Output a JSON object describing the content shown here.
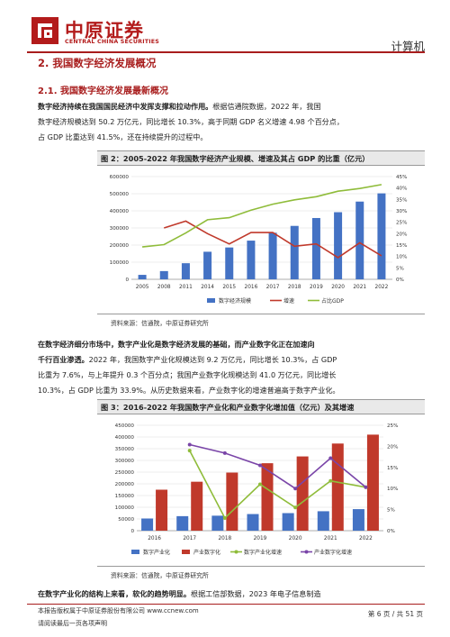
{
  "header": {
    "logo_cn": "中原证券",
    "logo_en": "CENTRAL CHINA SECURITIES",
    "category": "计算机"
  },
  "section_title": "2. 我国数字经济发展概况",
  "subsection_title": "2.1. 我国数字经济发展最新概况",
  "para1": {
    "line1_bold": "数字经济持续在我国国民经济中发挥支撑和拉动作用。",
    "line1_rest": "根据信通院数据，2022 年，我国",
    "line2": "数字经济规模达到 50.2 万亿元，同比增长 10.3%，高于同期 GDP 名义增速 4.98 个百分点，",
    "line3": "占 GDP 比重达到 41.5%，还在持续提升的过程中。"
  },
  "figure2": {
    "title": "图 2：2005-2022 年我国数字经济产业规模、增速及其占 GDP 的比重（亿元）",
    "source": "资料来源：信通院，中原证券研究所"
  },
  "para2": {
    "line1_bold": "在数字经济细分市场中，数字产业化是数字经济发展的基础，而产业数字化正在加速向",
    "line2_bold": "千行百业渗透。",
    "line2_rest": "2022 年，我国数字产业化规模达到 9.2 万亿元，同比增长 10.3%，占 GDP",
    "line3": "比重为 7.6%，与上年提升 0.3 个百分点；我国产业数字化规模达到 41.0 万亿元，同比增长",
    "line4": "10.3%，占 GDP 比重为 33.9%。从历史数据来看，产业数字化的增速普遍高于数字产业化。"
  },
  "figure3": {
    "title": "图 3：2016-2022 年我国数字产业化和产业数字化增加值（亿元）及其增速",
    "source": "资料来源：信通院，中原证券研究所"
  },
  "para3": {
    "line1_bold": "在数字产业化的结构上来看，软化的趋势明显。",
    "line1_rest": "根据工信部数据，2023 年电子信息制造"
  },
  "footer": {
    "line1": "本报告版权属于中原证券股份有限公司      www.ccnew.com",
    "line2": "请阅读最后一页各项声明",
    "page": "第 6 页 / 共 51 页"
  },
  "colors": {
    "brand": "#a81d1d",
    "bar_blue": "#4472c4",
    "bar_red": "#c0392b",
    "line_red": "#c0392b",
    "line_green": "#8fbc3a",
    "line_purple": "#7a45a8"
  },
  "chart_data": [
    {
      "type": "bar",
      "categories": [
        "2005",
        "2008",
        "2011",
        "2014",
        "2015",
        "2016",
        "2017",
        "2018",
        "2019",
        "2020",
        "2021",
        "2022"
      ],
      "series": [
        {
          "name": "数字经济规模",
          "type": "bar",
          "axis": "left",
          "values": [
            26000,
            48000,
            94000,
            161000,
            186000,
            226000,
            272000,
            312000,
            358000,
            392000,
            454000,
            502000
          ]
        },
        {
          "name": "增速",
          "type": "line",
          "axis": "right",
          "values": [
            null,
            22.5,
            25.5,
            20.0,
            15.5,
            20.5,
            20.5,
            14.5,
            15.5,
            9.5,
            16.0,
            10.3
          ]
        },
        {
          "name": "占比GDP",
          "type": "line",
          "axis": "right",
          "values": [
            14.2,
            15.2,
            20.3,
            26.1,
            27.0,
            30.3,
            32.9,
            34.8,
            36.2,
            38.6,
            39.8,
            41.5
          ]
        }
      ],
      "left_axis": {
        "ylim": [
          0,
          600000
        ],
        "ticks": [
          "0",
          "100000",
          "200000",
          "300000",
          "400000",
          "500000",
          "600000"
        ]
      },
      "right_axis": {
        "ylim": [
          0,
          45
        ],
        "ticks": [
          "0%",
          "5%",
          "10%",
          "15%",
          "20%",
          "25%",
          "30%",
          "35%",
          "40%",
          "45%"
        ]
      },
      "legend": [
        "数字经济规模",
        "增速",
        "占比GDP"
      ],
      "legend_position": "bottom",
      "grid": true
    },
    {
      "type": "bar",
      "categories": [
        "2016",
        "2017",
        "2018",
        "2019",
        "2020",
        "2021",
        "2022"
      ],
      "series": [
        {
          "name": "数字产业化",
          "type": "bar",
          "axis": "left",
          "values": [
            52000,
            62000,
            64000,
            71000,
            75000,
            83000,
            92000
          ]
        },
        {
          "name": "产业数字化",
          "type": "bar",
          "axis": "left",
          "values": [
            175000,
            209000,
            248000,
            288000,
            317000,
            372000,
            410000
          ]
        },
        {
          "name": "数字产业化增速",
          "type": "line",
          "axis": "right",
          "values": [
            null,
            19.0,
            3.0,
            11.0,
            5.5,
            11.8,
            10.3
          ]
        },
        {
          "name": "产业数字化增速",
          "type": "line",
          "axis": "right",
          "values": [
            null,
            20.4,
            18.4,
            15.5,
            10.0,
            17.2,
            10.3
          ]
        }
      ],
      "left_axis": {
        "ylim": [
          0,
          450000
        ],
        "ticks": [
          "0",
          "50000",
          "100000",
          "150000",
          "200000",
          "250000",
          "300000",
          "350000",
          "400000",
          "450000"
        ]
      },
      "right_axis": {
        "ylim": [
          0,
          25
        ],
        "ticks": [
          "0%",
          "5%",
          "10%",
          "15%",
          "20%",
          "25%"
        ]
      },
      "legend": [
        "数字产业化",
        "产业数字化",
        "数字产业化增速",
        "产业数字化增速"
      ],
      "legend_position": "bottom",
      "grid": true
    }
  ]
}
